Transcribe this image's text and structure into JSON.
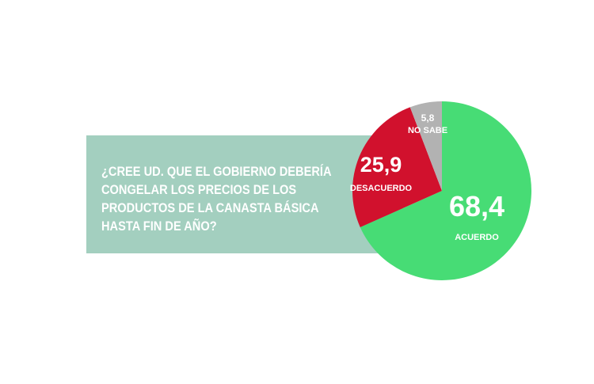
{
  "question": {
    "lines": [
      "¿CREE UD. QUE EL GOBIERNO DEBERÍA",
      "CONGELAR LOS PRECIOS DE LOS",
      "PRODUCTOS DE LA CANASTA BÁSICA",
      "HASTA FIN DE AÑO?"
    ]
  },
  "chart_data": {
    "type": "pie",
    "slices": [
      {
        "label": "ACUERDO",
        "value": 68.4,
        "display": "68,4",
        "color": "#47dc75"
      },
      {
        "label": "DESACUERDO",
        "value": 25.9,
        "display": "25,9",
        "color": "#d1112d"
      },
      {
        "label": "NO SABE",
        "value": 5.8,
        "display": "5,8",
        "color": "#b2b2b2"
      }
    ]
  }
}
